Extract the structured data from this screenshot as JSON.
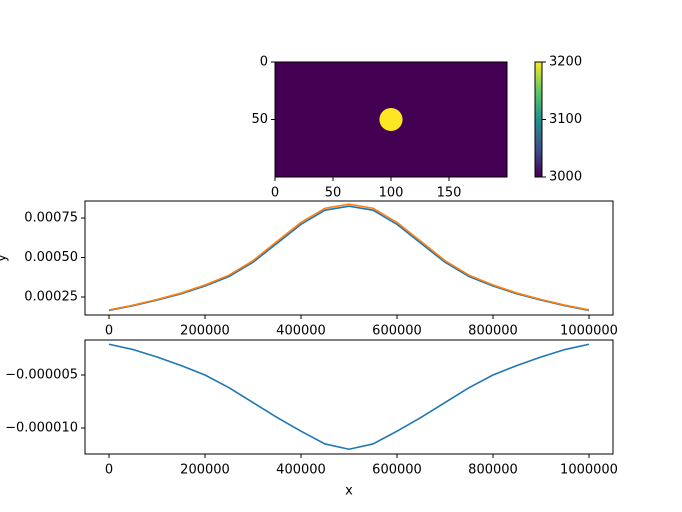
{
  "chart_data": [
    {
      "type": "image",
      "xlim": [
        0,
        200
      ],
      "ylim": [
        100,
        0
      ],
      "xticks": [
        0,
        50,
        100,
        150
      ],
      "yticks": [
        0,
        50
      ],
      "colormap": "viridis",
      "background": 3000,
      "disks": [
        {
          "x": 100,
          "y": 50,
          "radius": 10,
          "value": 3200
        }
      ],
      "colorbar": {
        "lim": [
          3000,
          3200
        ],
        "ticks": [
          3000,
          3100,
          3200
        ]
      }
    },
    {
      "type": "line",
      "ylabel": "y",
      "x": [
        0,
        50000,
        100000,
        150000,
        200000,
        250000,
        300000,
        350000,
        400000,
        450000,
        500000,
        550000,
        600000,
        650000,
        700000,
        750000,
        800000,
        850000,
        900000,
        950000,
        1000000
      ],
      "series": [
        {
          "color": "#1f77b4",
          "values": [
            0.000165,
            0.000195,
            0.00023,
            0.00027,
            0.00032,
            0.00038,
            0.00047,
            0.00059,
            0.00071,
            0.0008,
            0.000825,
            0.0008,
            0.00071,
            0.00059,
            0.00047,
            0.00038,
            0.00032,
            0.00027,
            0.00023,
            0.000195,
            0.000165
          ]
        },
        {
          "color": "#ff7f0e",
          "values": [
            0.000168,
            0.000198,
            0.000234,
            0.000275,
            0.000326,
            0.000388,
            0.00048,
            0.000602,
            0.000722,
            0.000812,
            0.000838,
            0.000812,
            0.000722,
            0.000602,
            0.00048,
            0.000388,
            0.000326,
            0.000275,
            0.000234,
            0.000198,
            0.000168
          ]
        }
      ],
      "xlim": [
        -50000,
        1050000
      ],
      "xticks": [
        0,
        200000,
        400000,
        600000,
        800000,
        1000000
      ],
      "ylim": [
        0.000136,
        0.000858
      ],
      "yticks": [
        0.00025,
        {
          "value": 0.0005,
          "label": "0.00050"
        },
        0.00075
      ]
    },
    {
      "type": "line",
      "xlabel": "x",
      "x": [
        0,
        50000,
        100000,
        150000,
        200000,
        250000,
        300000,
        350000,
        400000,
        450000,
        500000,
        550000,
        600000,
        650000,
        700000,
        750000,
        800000,
        850000,
        900000,
        950000,
        1000000
      ],
      "series": [
        {
          "color": "#1f77b4",
          "values": [
            -2.1e-06,
            -2.6e-06,
            -3.3e-06,
            -4.1e-06,
            -5e-06,
            -6.2e-06,
            -7.6e-06,
            -9e-06,
            -1.03e-05,
            -1.15e-05,
            -1.2e-05,
            -1.15e-05,
            -1.03e-05,
            -9e-06,
            -7.6e-06,
            -6.2e-06,
            -5e-06,
            -4.1e-06,
            -3.3e-06,
            -2.6e-06,
            -2.1e-06
          ]
        }
      ],
      "xlim": [
        -50000,
        1050000
      ],
      "xticks": [
        0,
        200000,
        400000,
        600000,
        800000,
        1000000
      ],
      "ylim": [
        -1.245e-05,
        -1.7e-06
      ],
      "yticks": [
        {
          "value": -1e-05,
          "label": "−0.000010"
        },
        {
          "value": -5e-06,
          "label": "−0.000005"
        }
      ]
    }
  ]
}
